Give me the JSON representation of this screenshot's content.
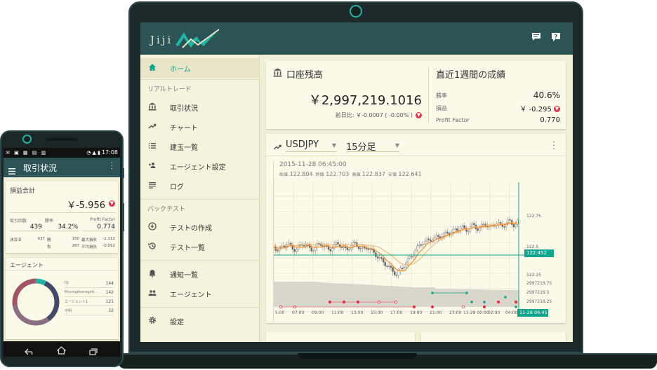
{
  "laptop": {
    "header": {
      "logo_text": "Jiji"
    },
    "sidebar": {
      "home": "ホーム",
      "realtrade_section": "リアルトレード",
      "realtrade_items": [
        "取引状況",
        "チャート",
        "建玉一覧",
        "エージェント設定",
        "ログ"
      ],
      "backtest_section": "バックテスト",
      "backtest_items": [
        "テストの作成",
        "テスト一覧"
      ],
      "other_items": [
        "通知一覧",
        "エージェント"
      ],
      "settings": "設定"
    },
    "balance": {
      "title": "口座残高",
      "amount": "￥2,997,219.1016",
      "diff_label": "前日比: ￥-0.0007 ( -0.00% )"
    },
    "weekly": {
      "title": "直近1週間の成績",
      "win_rate_label": "勝率",
      "win_rate": "40.6%",
      "profit_label": "損益",
      "profit": "￥ -0.295",
      "pf_label": "Profit Factor",
      "pf": "0.770"
    },
    "chart": {
      "pair": "USDJPY",
      "interval": "15分足",
      "datetime": "2015-11-28 06:45:00",
      "ohlc": [
        {
          "label": "始値",
          "value": "122.804"
        },
        {
          "label": "終値",
          "value": "122.703"
        },
        {
          "label": "高値",
          "value": "122.837"
        },
        {
          "label": "安値",
          "value": "122.641"
        }
      ],
      "price_ticks": [
        "122.75",
        "122.5",
        "122.25"
      ],
      "current_price": "122.452",
      "balance_ticks": [
        "2997219.75",
        "2997219.5",
        "2997219.25"
      ],
      "time_ticks": [
        "5:00",
        "07:00",
        "09:00",
        "11:00",
        "13:00",
        "15:00",
        "17:00",
        "19:00",
        "21:00",
        "23:00",
        "11-28 00:00",
        "02:00",
        "04:00"
      ],
      "cursor_time": "11-28 06:45"
    }
  },
  "phone": {
    "status_time": "17:08",
    "app_title": "取引状況",
    "pl": {
      "title": "損益合計",
      "total": "￥-5.956",
      "headers": [
        "取引回数",
        "勝率",
        "Profit Factor"
      ],
      "values": [
        "439",
        "34.2%",
        "0.774"
      ],
      "rows": [
        [
          {
            "label": "決済済",
            "value": "437"
          },
          {
            "label": "勝",
            "value": "150"
          },
          {
            "label": "最大損失",
            "value": "-1.112"
          }
        ],
        [
          {
            "label": "",
            "value": ""
          },
          {
            "label": "負",
            "value": "287"
          },
          {
            "label": "平均損失",
            "value": "-0.092"
          }
        ]
      ]
    },
    "agents": {
      "title": "エージェント",
      "legend": [
        {
          "name": "01",
          "value": "144"
        },
        {
          "name": "MovingAverageA...",
          "value": "142"
        },
        {
          "name": "エージェント1",
          "value": "121"
        },
        {
          "name": "不明",
          "value": "32"
        }
      ],
      "colors": [
        "#444a6a",
        "#8a6f82",
        "#a05566",
        "#1fb5a0"
      ]
    }
  }
}
